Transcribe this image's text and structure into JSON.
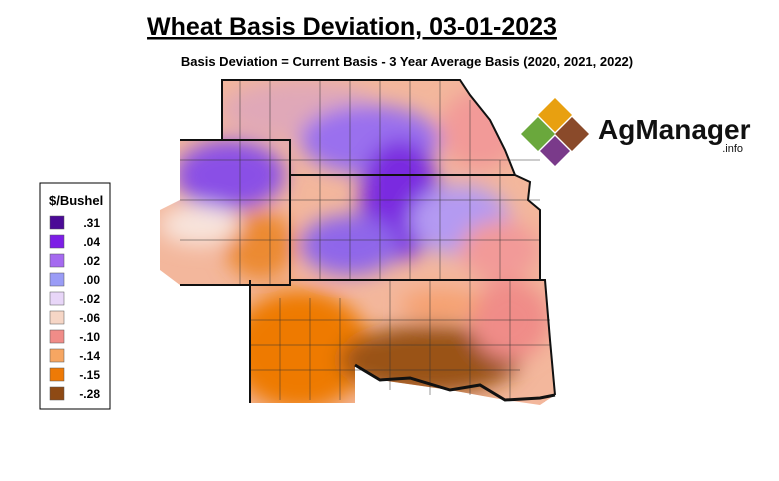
{
  "title": "Wheat Basis Deviation, 03-01-2023",
  "subtitle": "Basis Deviation = Current Basis - 3 Year Average Basis (2020, 2021, 2022)",
  "legend": {
    "title": "$/Bushel",
    "items": [
      {
        "label": ".31",
        "color": "#4b0a96"
      },
      {
        "label": ".04",
        "color": "#7d1ee6"
      },
      {
        "label": ".02",
        "color": "#a56af0"
      },
      {
        "label": ".00",
        "color": "#9a9cf6"
      },
      {
        "label": "-.02",
        "color": "#e8d6f8"
      },
      {
        "label": "-.06",
        "color": "#f6d6c6"
      },
      {
        "label": "-.10",
        "color": "#f08c88"
      },
      {
        "label": "-.14",
        "color": "#f6a662"
      },
      {
        "label": "-.15",
        "color": "#ee7a06"
      },
      {
        "label": "-.28",
        "color": "#8e4a14"
      }
    ]
  },
  "logo": {
    "name": "AgManager",
    "suffix": ".info"
  }
}
